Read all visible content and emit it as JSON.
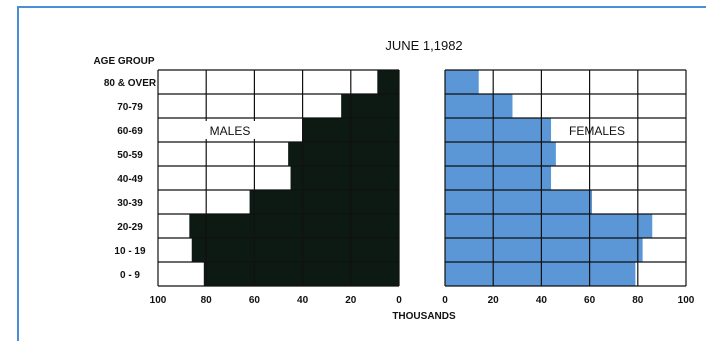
{
  "chart_data": {
    "type": "bar",
    "subtype": "population-pyramid",
    "title": "JUNE 1,1982",
    "xlabel": "THOUSANDS",
    "category_header": "AGE GROUP",
    "categories": [
      "80 & OVER",
      "70-79",
      "60-69",
      "50-59",
      "40-49",
      "30-39",
      "20-29",
      "10 - 19",
      "0 - 9"
    ],
    "xlim": [
      0,
      100
    ],
    "x_ticks_left": [
      "100",
      "80",
      "60",
      "40",
      "20",
      "0"
    ],
    "x_ticks_right": [
      "0",
      "20",
      "40",
      "60",
      "80",
      "100"
    ],
    "grid": true,
    "series": [
      {
        "name": "MALES",
        "side": "left",
        "color": "#0d1a14",
        "values": [
          9,
          24,
          40,
          46,
          45,
          62,
          87,
          86,
          81
        ]
      },
      {
        "name": "FEMALES",
        "side": "right",
        "color": "#5b96d6",
        "values": [
          14,
          28,
          44,
          46,
          44,
          61,
          86,
          82,
          79
        ]
      }
    ]
  }
}
